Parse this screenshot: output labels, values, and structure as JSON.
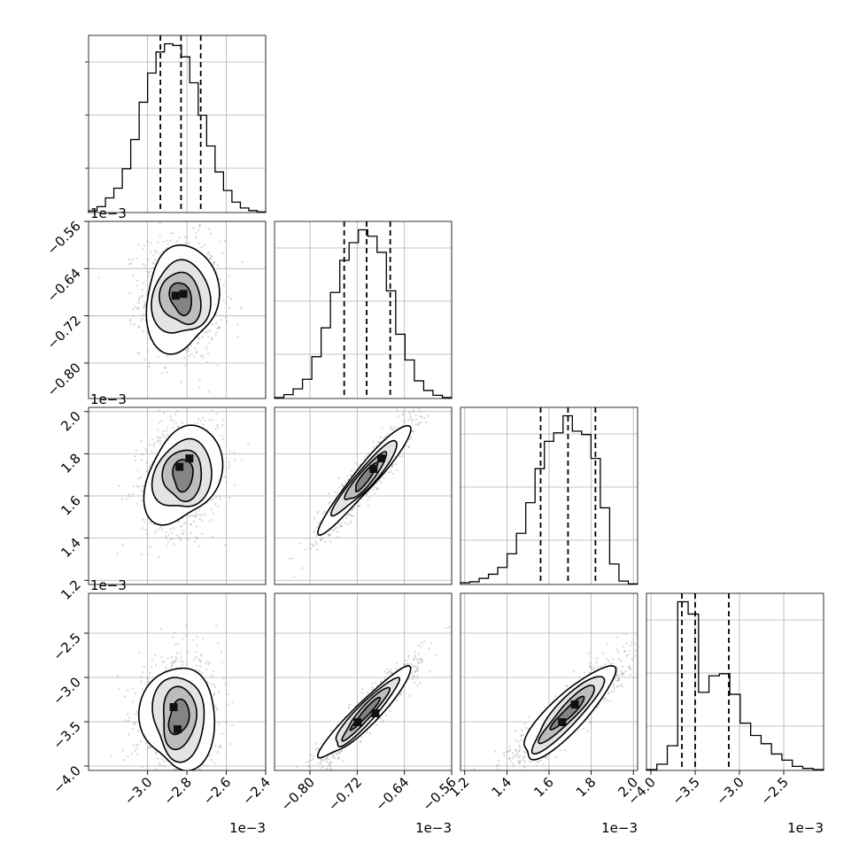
{
  "chart_data": {
    "type": "corner",
    "dimensions": 4,
    "grid": true,
    "quantiles": [
      0.16,
      0.5,
      0.84
    ],
    "params": [
      {
        "label": "",
        "range": [
          -3.3,
          -2.4
        ],
        "ticks": [
          -3.0,
          -2.8,
          -2.6,
          -2.4
        ],
        "tick_labels": [
          "−3.0",
          "−2.8",
          "−2.6",
          "−2.4"
        ],
        "offset_text": "1e−3",
        "histogram": [
          0.5,
          1.8,
          4.5,
          7.5,
          13.5,
          22.5,
          34.0,
          43.0,
          49.5,
          52.0,
          51.5,
          48.0,
          40.0,
          30.0,
          20.5,
          12.5,
          6.8,
          3.2,
          1.4,
          0.6,
          0.2
        ],
        "hist_edges": [
          -3.3,
          -2.4
        ],
        "quantile_values": [
          -2.935,
          -2.83,
          -2.73
        ]
      },
      {
        "label": "",
        "range": [
          -0.86,
          -0.56
        ],
        "ticks": [
          -0.8,
          -0.72,
          -0.64,
          -0.56
        ],
        "tick_labels": [
          "−0.80",
          "−0.72",
          "−0.64",
          "−0.56"
        ],
        "offset_text": "1e−3",
        "histogram": [
          0.3,
          1.2,
          3.0,
          6.0,
          13.0,
          22.0,
          33.0,
          43.0,
          48.5,
          52.5,
          50.5,
          45.5,
          33.5,
          20.0,
          12.0,
          5.5,
          2.5,
          1.0,
          0.3
        ],
        "hist_edges": [
          -0.86,
          -0.56
        ],
        "quantile_values": [
          -0.742,
          -0.704,
          -0.664
        ]
      },
      {
        "label": "",
        "range": [
          1.18,
          2.02
        ],
        "ticks": [
          1.2,
          1.4,
          1.6,
          1.8,
          2.0
        ],
        "tick_labels": [
          "1.2",
          "1.4",
          "1.6",
          "1.8",
          "2.0"
        ],
        "offset_text": "1e−3",
        "histogram": [
          0.5,
          0.8,
          1.8,
          3.0,
          5.0,
          9.0,
          15.0,
          24.0,
          34.0,
          42.0,
          44.5,
          49.5,
          45.0,
          44.0,
          37.0,
          22.5,
          6.0,
          1.0,
          0.2
        ],
        "hist_edges": [
          1.18,
          2.02
        ],
        "quantile_values": [
          1.56,
          1.69,
          1.82
        ]
      },
      {
        "label": "",
        "range": [
          -4.05,
          -2.05
        ],
        "ticks": [
          -4.0,
          -3.5,
          -3.0,
          -2.5
        ],
        "tick_labels": [
          "−4.0",
          "−3.5",
          "−3.0",
          "−2.5"
        ],
        "offset_text": "1e−3",
        "histogram": [
          0.2,
          1.5,
          6.0,
          41.0,
          38.0,
          19.0,
          23.0,
          23.5,
          18.5,
          11.5,
          8.5,
          6.5,
          4.0,
          2.5,
          1.0,
          0.5,
          0.2
        ],
        "hist_edges": [
          -4.05,
          -2.05
        ],
        "quantile_values": [
          -3.65,
          -3.5,
          -3.12
        ]
      }
    ],
    "pairs": [
      {
        "x_param": 0,
        "y_param": 1,
        "mean": [
          -2.83,
          -0.69
        ],
        "std": [
          0.09,
          0.045
        ],
        "corr": -0.05,
        "peaks": [
          [
            -2.86,
            -0.685
          ],
          [
            -2.82,
            -0.682
          ]
        ]
      },
      {
        "x_param": 0,
        "y_param": 2,
        "mean": [
          -2.82,
          1.7
        ],
        "std": [
          0.09,
          0.12
        ],
        "corr": 0.2,
        "peaks": [
          [
            -2.84,
            1.74
          ],
          [
            -2.79,
            1.78
          ]
        ]
      },
      {
        "x_param": 1,
        "y_param": 2,
        "mean": [
          -0.705,
          1.69
        ],
        "std": [
          0.035,
          0.12
        ],
        "corr": 0.93,
        "peaks": [
          [
            -0.693,
            1.73
          ],
          [
            -0.68,
            1.78
          ]
        ]
      },
      {
        "x_param": 0,
        "y_param": 3,
        "mean": [
          -2.84,
          -3.45
        ],
        "std": [
          0.09,
          0.3
        ],
        "corr": 0.1,
        "peaks": [
          [
            -2.85,
            -3.58
          ],
          [
            -2.87,
            -3.33
          ]
        ]
      },
      {
        "x_param": 1,
        "y_param": 3,
        "mean": [
          -0.705,
          -3.4
        ],
        "std": [
          0.04,
          0.28
        ],
        "corr": 0.95,
        "peaks": [
          [
            -0.72,
            -3.5
          ],
          [
            -0.69,
            -3.4
          ]
        ]
      },
      {
        "x_param": 2,
        "y_param": 3,
        "mean": [
          1.69,
          -3.4
        ],
        "std": [
          0.12,
          0.28
        ],
        "corr": 0.9,
        "peaks": [
          [
            1.66,
            -3.5
          ],
          [
            1.72,
            -3.3
          ]
        ]
      }
    ]
  }
}
